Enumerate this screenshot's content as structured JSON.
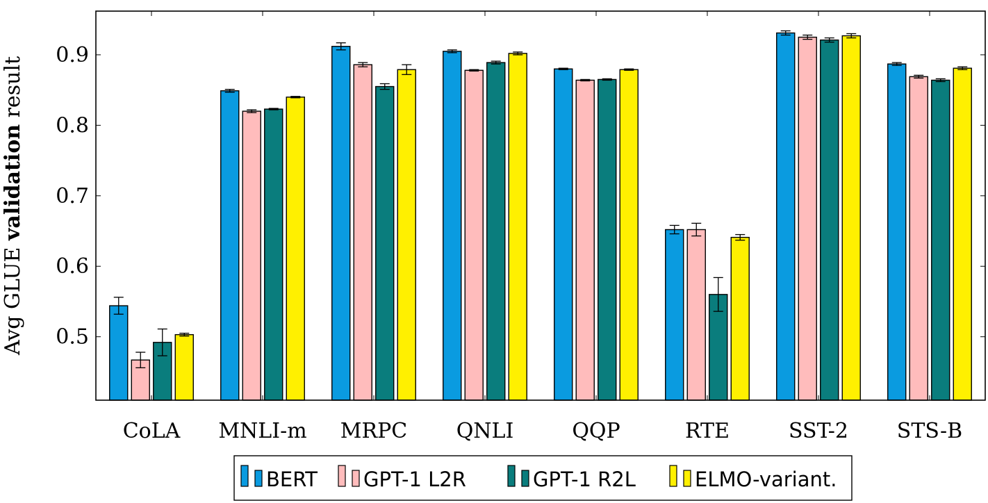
{
  "chart_data": {
    "type": "bar",
    "ylabel_prefix": "Avg GLUE ",
    "ylabel_bold": "validation",
    "ylabel_suffix": " result",
    "categories": [
      "CoLA",
      "MNLI-m",
      "MRPC",
      "QNLI",
      "QQP",
      "RTE",
      "SST-2",
      "STS-B"
    ],
    "ylim": [
      0.41,
      0.962
    ],
    "yticks": [
      0.5,
      0.6,
      0.7,
      0.8,
      0.9
    ],
    "ytick_labels": [
      "0.5",
      "0.6",
      "0.7",
      "0.8",
      "0.9"
    ],
    "grid": false,
    "legend_position": "bottom-center",
    "series": [
      {
        "name": "BERT",
        "color": "#0a9be0",
        "values": [
          0.544,
          0.849,
          0.912,
          0.905,
          0.88,
          0.652,
          0.931,
          0.887
        ],
        "errors": [
          0.012,
          0.002,
          0.005,
          0.002,
          0.001,
          0.006,
          0.003,
          0.002
        ]
      },
      {
        "name": "GPT-1 L2R",
        "color": "#ffbcbc",
        "values": [
          0.467,
          0.82,
          0.886,
          0.878,
          0.864,
          0.652,
          0.925,
          0.869
        ],
        "errors": [
          0.011,
          0.002,
          0.003,
          0.001,
          0.001,
          0.009,
          0.003,
          0.002
        ]
      },
      {
        "name": "GPT-1 R2L",
        "color": "#0a7d7d",
        "values": [
          0.492,
          0.823,
          0.855,
          0.889,
          0.865,
          0.56,
          0.921,
          0.864
        ],
        "errors": [
          0.019,
          0.001,
          0.004,
          0.002,
          0.001,
          0.024,
          0.003,
          0.002
        ]
      },
      {
        "name": "ELMO-variant.",
        "color": "#fff000",
        "values": [
          0.503,
          0.84,
          0.879,
          0.902,
          0.879,
          0.641,
          0.927,
          0.881
        ],
        "errors": [
          0.002,
          0.001,
          0.007,
          0.002,
          0.001,
          0.004,
          0.003,
          0.002
        ]
      }
    ]
  }
}
